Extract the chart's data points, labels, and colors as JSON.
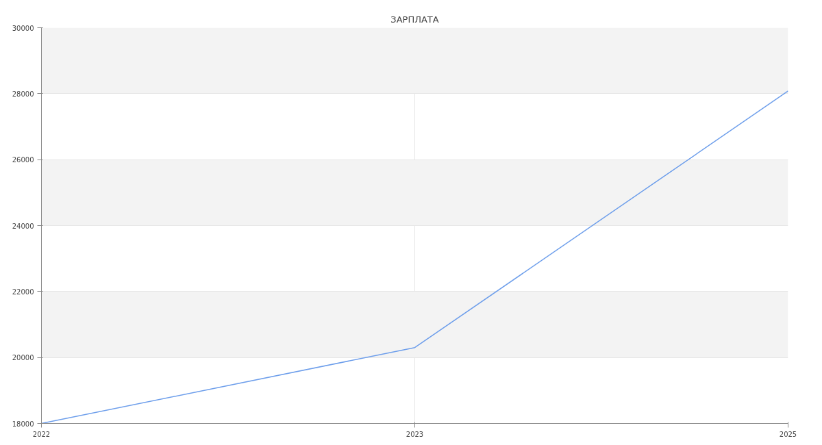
{
  "chart_data": {
    "type": "line",
    "title": "ЗАРПЛАТА",
    "categories": [
      "2022",
      "2023",
      "2025"
    ],
    "series": [
      {
        "color": "#6d9eeb",
        "values": [
          18000,
          20300,
          28080
        ]
      }
    ],
    "ylim": [
      18000,
      30000
    ],
    "yticks": [
      18000,
      20000,
      22000,
      24000,
      26000,
      28000,
      30000
    ],
    "grid": true,
    "marker": "none",
    "line_style": "solid"
  }
}
